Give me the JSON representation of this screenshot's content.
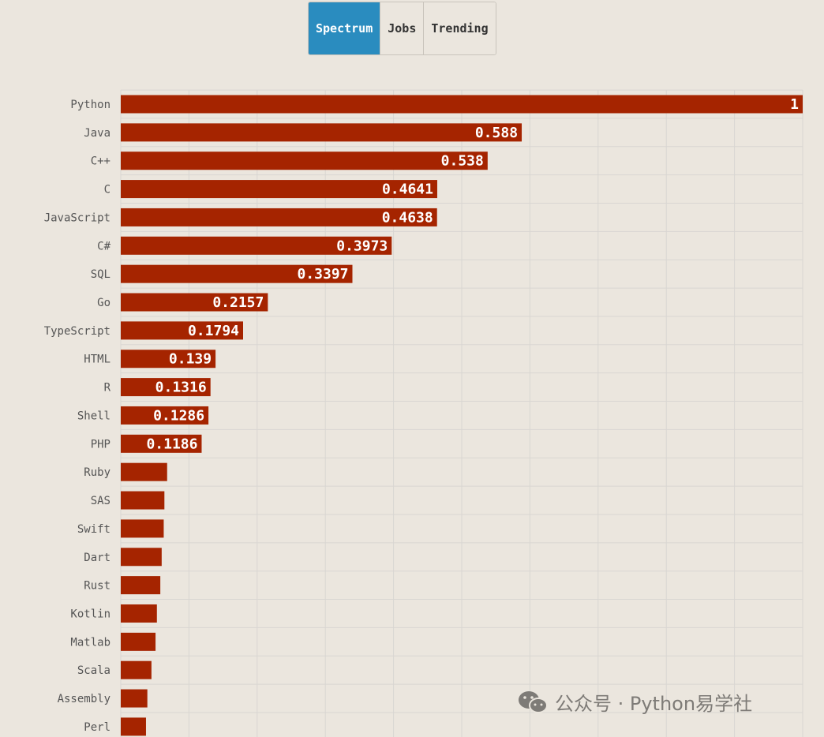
{
  "tabs": [
    {
      "label": "Spectrum",
      "active": true
    },
    {
      "label": "Jobs",
      "active": false
    },
    {
      "label": "Trending",
      "active": false
    }
  ],
  "watermark": {
    "text": "公众号 · Python易学社",
    "icon": "wechat-icon"
  },
  "colors": {
    "bar": "#a52400",
    "grid": "#d9d6d2",
    "active_tab": "#2a8cbf",
    "background": "#ebe6de"
  },
  "chart_data": {
    "type": "bar",
    "orientation": "horizontal",
    "title": "",
    "xlabel": "",
    "ylabel": "",
    "xlim": [
      0,
      1
    ],
    "grid": true,
    "categories": [
      "Python",
      "Java",
      "C++",
      "C",
      "JavaScript",
      "C#",
      "SQL",
      "Go",
      "TypeScript",
      "HTML",
      "R",
      "Shell",
      "PHP",
      "Ruby",
      "SAS",
      "Swift",
      "Dart",
      "Rust",
      "Kotlin",
      "Matlab",
      "Scala",
      "Assembly",
      "Perl"
    ],
    "values": [
      1,
      0.588,
      0.538,
      0.4641,
      0.4638,
      0.3973,
      0.3397,
      0.2157,
      0.1794,
      0.139,
      0.1316,
      0.1286,
      0.1186,
      0.068,
      0.064,
      0.063,
      0.06,
      0.058,
      0.053,
      0.051,
      0.045,
      0.039,
      0.037
    ],
    "value_labels": [
      "1",
      "0.588",
      "0.538",
      "0.4641",
      "0.4638",
      "0.3973",
      "0.3397",
      "0.2157",
      "0.1794",
      "0.139",
      "0.1316",
      "0.1286",
      "0.1186",
      "",
      "",
      "",
      "",
      "",
      "",
      "",
      "",
      "",
      ""
    ]
  }
}
